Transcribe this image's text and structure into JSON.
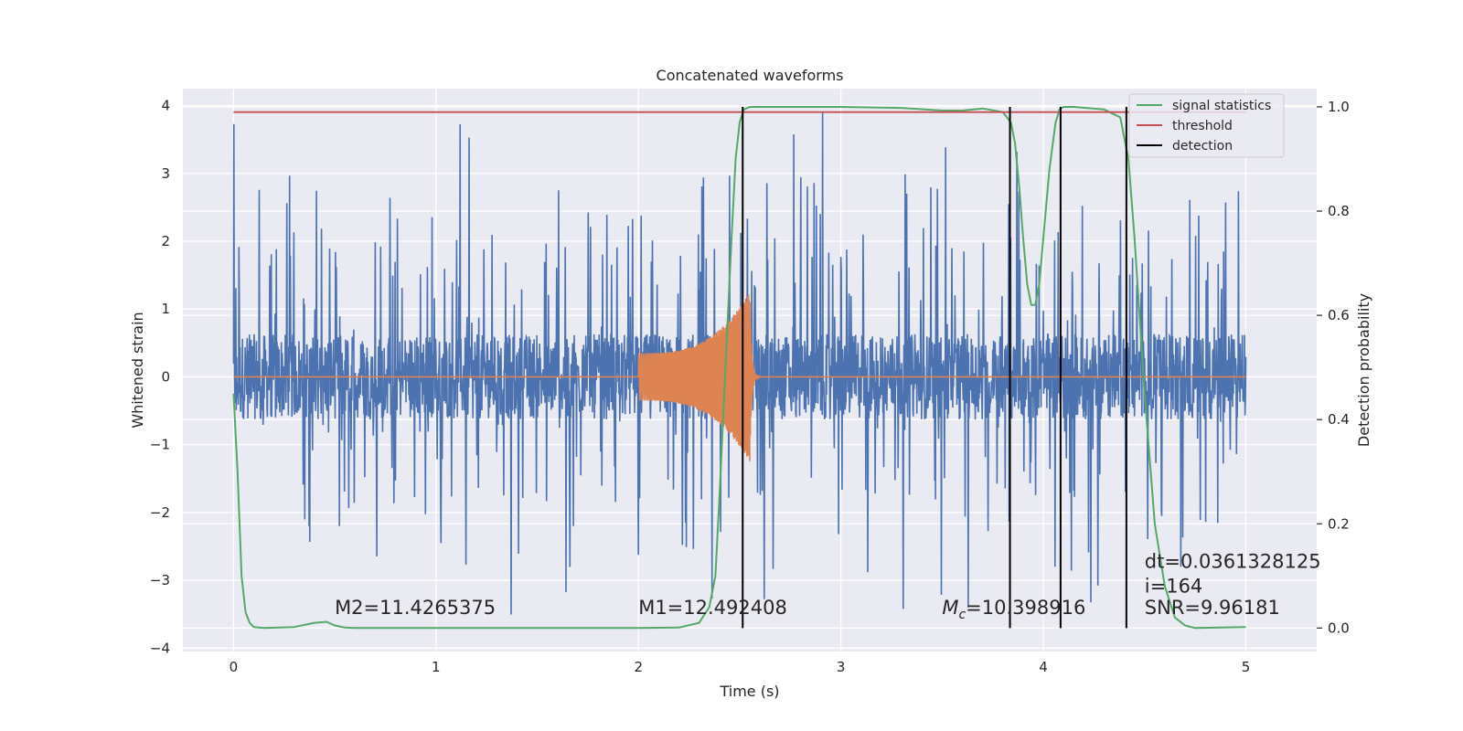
{
  "chart_data": {
    "type": "line",
    "title": "Concatenated waveforms",
    "xlabel": "Time (s)",
    "ylabel": "Whitened strain",
    "y2label": "Detection probability",
    "xlim": [
      -0.25,
      5.35
    ],
    "ylim": [
      -4.05,
      4.25
    ],
    "y2lim": [
      -0.045,
      1.035
    ],
    "x_ticks": [
      0,
      1,
      2,
      3,
      4,
      5
    ],
    "y_ticks": [
      -4,
      -3,
      -2,
      -1,
      0,
      1,
      2,
      3,
      4
    ],
    "y2_ticks": [
      0.0,
      0.2,
      0.4,
      0.6,
      0.8,
      1.0
    ],
    "grid": true,
    "legend_position": "top-right",
    "colors": {
      "strain": "#4c72b0",
      "waveform": "#dd8452",
      "signal_statistics": "#55a868",
      "threshold": "#c44e52",
      "detection": "#000000",
      "plot_bg": "#eaeaf2",
      "grid": "#ffffff"
    },
    "series": [
      {
        "name": "signal statistics",
        "axis": "right",
        "x": [
          0.0,
          0.02,
          0.04,
          0.06,
          0.08,
          0.1,
          0.15,
          0.3,
          0.4,
          0.46,
          0.5,
          0.55,
          0.6,
          1.0,
          1.5,
          2.0,
          2.2,
          2.3,
          2.35,
          2.38,
          2.4,
          2.43,
          2.46,
          2.48,
          2.5,
          2.52,
          2.55,
          2.6,
          2.8,
          3.0,
          3.3,
          3.5,
          3.6,
          3.7,
          3.8,
          3.84,
          3.86,
          3.88,
          3.9,
          3.92,
          3.94,
          3.96,
          3.98,
          4.0,
          4.03,
          4.06,
          4.08,
          4.1,
          4.15,
          4.3,
          4.38,
          4.42,
          4.45,
          4.5,
          4.55,
          4.6,
          4.65,
          4.7,
          4.75,
          5.0
        ],
        "values": [
          0.45,
          0.3,
          0.1,
          0.03,
          0.01,
          0.002,
          0.0,
          0.002,
          0.01,
          0.012,
          0.005,
          0.001,
          0.0,
          0.0,
          0.0,
          0.0,
          0.001,
          0.01,
          0.04,
          0.1,
          0.25,
          0.5,
          0.75,
          0.9,
          0.97,
          0.995,
          1.0,
          1.0,
          1.0,
          1.0,
          0.998,
          0.993,
          0.993,
          0.997,
          0.99,
          0.97,
          0.93,
          0.85,
          0.75,
          0.66,
          0.62,
          0.62,
          0.66,
          0.75,
          0.88,
          0.97,
          0.995,
          1.0,
          1.0,
          0.995,
          0.98,
          0.9,
          0.75,
          0.45,
          0.2,
          0.08,
          0.02,
          0.005,
          0.0,
          0.002
        ]
      },
      {
        "name": "threshold",
        "axis": "right",
        "x": [
          0.0,
          5.0
        ],
        "values": [
          0.99,
          0.99
        ]
      },
      {
        "name": "detection",
        "axis": "right",
        "x": [
          2.515,
          3.835,
          4.085,
          4.41
        ],
        "values": [
          1.0,
          1.0,
          1.0,
          1.0
        ]
      }
    ],
    "strain_noise": {
      "x_range": [
        0,
        5
      ],
      "envelope": 0.6,
      "spike_max": 3.9,
      "spike_min": -3.6
    },
    "injected_waveform": {
      "x_start": 2.0,
      "x_merger": 2.55,
      "x_end": 2.6,
      "amp_start": 0.35,
      "amp_peak": 1.25
    },
    "annotations": [
      {
        "text": "M2=11.4265375",
        "x": 0.5,
        "y": -3.5
      },
      {
        "text": "M1=12.492408",
        "x": 2.0,
        "y": -3.5
      },
      {
        "text": "=10.398916",
        "x": 3.5,
        "y": -3.5,
        "prefix_symbol": "M",
        "prefix_sub": "c"
      },
      {
        "text": "dt=0.0361328125",
        "x": 4.5,
        "y": -2.82
      },
      {
        "text": " i=164",
        "x": 4.5,
        "y": -3.18
      },
      {
        "text": "SNR=9.96181",
        "x": 4.5,
        "y": -3.5
      }
    ]
  }
}
